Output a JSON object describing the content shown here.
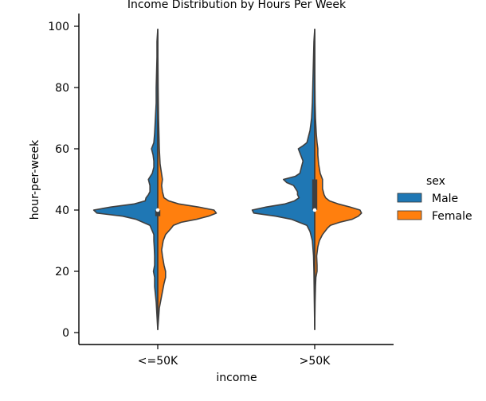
{
  "chart_data": {
    "type": "violin",
    "title": "Income Distribution by Hours Per Week",
    "xlabel": "income",
    "ylabel": "hour-per-week",
    "categories": [
      "<=50K",
      ">50K"
    ],
    "ylim": [
      -4,
      104
    ],
    "yticks": [
      0,
      20,
      40,
      60,
      80,
      100
    ],
    "split": true,
    "grid": false,
    "legend": {
      "title": "sex",
      "position": "right",
      "entries": [
        "Male",
        "Female"
      ]
    },
    "series": [
      {
        "name": "Male",
        "color": "#1f77b4",
        "side": "left",
        "density": [
          {
            "category": "<=50K",
            "points": [
              [
                1,
                0.0
              ],
              [
                10,
                0.02
              ],
              [
                15,
                0.04
              ],
              [
                18,
                0.04
              ],
              [
                20,
                0.055
              ],
              [
                22,
                0.04
              ],
              [
                25,
                0.04
              ],
              [
                28,
                0.045
              ],
              [
                30,
                0.05
              ],
              [
                32,
                0.05
              ],
              [
                35,
                0.1
              ],
              [
                37,
                0.28
              ],
              [
                38,
                0.45
              ],
              [
                39,
                0.78
              ],
              [
                40,
                0.82
              ],
              [
                41,
                0.6
              ],
              [
                42,
                0.3
              ],
              [
                43,
                0.16
              ],
              [
                44,
                0.15
              ],
              [
                45,
                0.12
              ],
              [
                46,
                0.1
              ],
              [
                48,
                0.1
              ],
              [
                50,
                0.12
              ],
              [
                52,
                0.07
              ],
              [
                54,
                0.05
              ],
              [
                56,
                0.05
              ],
              [
                58,
                0.06
              ],
              [
                60,
                0.08
              ],
              [
                62,
                0.05
              ],
              [
                65,
                0.04
              ],
              [
                70,
                0.03
              ],
              [
                75,
                0.02
              ],
              [
                80,
                0.02
              ],
              [
                85,
                0.015
              ],
              [
                90,
                0.01
              ],
              [
                95,
                0.01
              ],
              [
                99,
                0.0
              ]
            ]
          },
          {
            "category": ">50K",
            "points": [
              [
                1,
                0.0
              ],
              [
                10,
                0.005
              ],
              [
                20,
                0.01
              ],
              [
                25,
                0.015
              ],
              [
                30,
                0.03
              ],
              [
                33,
                0.06
              ],
              [
                35,
                0.1
              ],
              [
                37,
                0.3
              ],
              [
                38,
                0.5
              ],
              [
                39,
                0.78
              ],
              [
                40,
                0.8
              ],
              [
                41,
                0.62
              ],
              [
                42,
                0.38
              ],
              [
                43,
                0.26
              ],
              [
                44,
                0.2
              ],
              [
                45,
                0.22
              ],
              [
                46,
                0.22
              ],
              [
                48,
                0.27
              ],
              [
                49,
                0.36
              ],
              [
                50,
                0.4
              ],
              [
                51,
                0.25
              ],
              [
                52,
                0.19
              ],
              [
                54,
                0.17
              ],
              [
                56,
                0.15
              ],
              [
                58,
                0.18
              ],
              [
                60,
                0.21
              ],
              [
                61,
                0.15
              ],
              [
                62,
                0.1
              ],
              [
                64,
                0.08
              ],
              [
                66,
                0.06
              ],
              [
                70,
                0.04
              ],
              [
                75,
                0.03
              ],
              [
                80,
                0.025
              ],
              [
                85,
                0.02
              ],
              [
                90,
                0.015
              ],
              [
                95,
                0.01
              ],
              [
                99,
                0.0
              ]
            ]
          }
        ]
      },
      {
        "name": "Female",
        "color": "#ff7f0e",
        "side": "right",
        "density": [
          {
            "category": "<=50K",
            "points": [
              [
                1,
                0.0
              ],
              [
                8,
                0.02
              ],
              [
                12,
                0.05
              ],
              [
                16,
                0.08
              ],
              [
                18,
                0.1
              ],
              [
                20,
                0.1
              ],
              [
                22,
                0.08
              ],
              [
                25,
                0.06
              ],
              [
                27,
                0.05
              ],
              [
                30,
                0.07
              ],
              [
                32,
                0.1
              ],
              [
                34,
                0.17
              ],
              [
                35,
                0.2
              ],
              [
                36,
                0.3
              ],
              [
                37,
                0.5
              ],
              [
                38,
                0.65
              ],
              [
                39,
                0.75
              ],
              [
                40,
                0.72
              ],
              [
                41,
                0.52
              ],
              [
                42,
                0.27
              ],
              [
                43,
                0.14
              ],
              [
                44,
                0.08
              ],
              [
                45,
                0.07
              ],
              [
                46,
                0.06
              ],
              [
                48,
                0.05
              ],
              [
                50,
                0.06
              ],
              [
                55,
                0.03
              ],
              [
                60,
                0.02
              ],
              [
                65,
                0.015
              ],
              [
                70,
                0.01
              ],
              [
                80,
                0.005
              ],
              [
                90,
                0.002
              ],
              [
                99,
                0.0
              ]
            ]
          },
          {
            "category": ">50K",
            "points": [
              [
                1,
                0.0
              ],
              [
                10,
                0.005
              ],
              [
                15,
                0.01
              ],
              [
                18,
                0.015
              ],
              [
                20,
                0.03
              ],
              [
                22,
                0.03
              ],
              [
                25,
                0.025
              ],
              [
                28,
                0.04
              ],
              [
                30,
                0.06
              ],
              [
                32,
                0.1
              ],
              [
                34,
                0.16
              ],
              [
                35,
                0.2
              ],
              [
                36,
                0.32
              ],
              [
                37,
                0.48
              ],
              [
                38,
                0.56
              ],
              [
                39,
                0.6
              ],
              [
                40,
                0.58
              ],
              [
                41,
                0.45
              ],
              [
                42,
                0.3
              ],
              [
                43,
                0.19
              ],
              [
                44,
                0.14
              ],
              [
                45,
                0.12
              ],
              [
                47,
                0.1
              ],
              [
                50,
                0.1
              ],
              [
                52,
                0.07
              ],
              [
                55,
                0.05
              ],
              [
                58,
                0.04
              ],
              [
                60,
                0.04
              ],
              [
                62,
                0.03
              ],
              [
                65,
                0.02
              ],
              [
                70,
                0.01
              ],
              [
                75,
                0.005
              ],
              [
                80,
                0.003
              ],
              [
                90,
                0.001
              ],
              [
                99,
                0.0
              ]
            ]
          }
        ]
      }
    ],
    "box_summary": [
      {
        "category": "<=50K",
        "q1": 38,
        "median": 40,
        "q3": 40,
        "whisker_low": 5,
        "whisker_high": 98
      },
      {
        "category": ">50K",
        "q1": 40,
        "median": 40,
        "q3": 50,
        "whisker_low": 2,
        "whisker_high": 98
      }
    ]
  }
}
